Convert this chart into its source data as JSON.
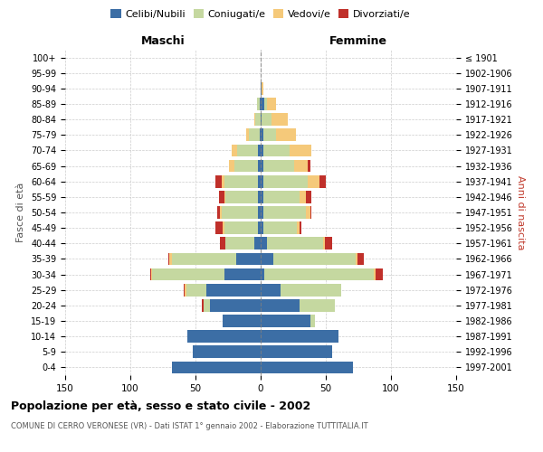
{
  "age_groups": [
    "0-4",
    "5-9",
    "10-14",
    "15-19",
    "20-24",
    "25-29",
    "30-34",
    "35-39",
    "40-44",
    "45-49",
    "50-54",
    "55-59",
    "60-64",
    "65-69",
    "70-74",
    "75-79",
    "80-84",
    "85-89",
    "90-94",
    "95-99",
    "100+"
  ],
  "birth_years": [
    "1997-2001",
    "1992-1996",
    "1987-1991",
    "1982-1986",
    "1977-1981",
    "1972-1976",
    "1967-1971",
    "1962-1966",
    "1957-1961",
    "1952-1956",
    "1947-1951",
    "1942-1946",
    "1937-1941",
    "1932-1936",
    "1927-1931",
    "1922-1926",
    "1917-1921",
    "1912-1916",
    "1907-1911",
    "1902-1906",
    "≤ 1901"
  ],
  "male": {
    "celibe": [
      68,
      52,
      56,
      29,
      39,
      42,
      28,
      19,
      5,
      2,
      2,
      2,
      2,
      2,
      2,
      1,
      0,
      1,
      0,
      0,
      0
    ],
    "coniugato": [
      0,
      0,
      0,
      0,
      5,
      15,
      55,
      49,
      22,
      26,
      28,
      25,
      26,
      18,
      16,
      8,
      4,
      2,
      0,
      0,
      0
    ],
    "vedovo": [
      0,
      0,
      0,
      0,
      0,
      1,
      1,
      2,
      0,
      1,
      1,
      1,
      2,
      4,
      4,
      2,
      1,
      0,
      0,
      0,
      0
    ],
    "divorziato": [
      0,
      0,
      0,
      0,
      1,
      1,
      1,
      1,
      4,
      6,
      2,
      4,
      5,
      0,
      0,
      0,
      0,
      0,
      0,
      0,
      0
    ]
  },
  "female": {
    "nubile": [
      71,
      55,
      60,
      38,
      30,
      15,
      3,
      10,
      5,
      2,
      2,
      2,
      2,
      2,
      2,
      2,
      1,
      3,
      1,
      0,
      0
    ],
    "coniugata": [
      0,
      0,
      0,
      4,
      27,
      47,
      84,
      63,
      43,
      26,
      33,
      28,
      34,
      24,
      20,
      10,
      7,
      2,
      0,
      0,
      0
    ],
    "vedova": [
      0,
      0,
      0,
      0,
      0,
      0,
      1,
      1,
      1,
      2,
      3,
      5,
      9,
      10,
      17,
      15,
      13,
      7,
      1,
      0,
      0
    ],
    "divorziata": [
      0,
      0,
      0,
      0,
      0,
      0,
      6,
      5,
      6,
      1,
      1,
      4,
      5,
      2,
      0,
      0,
      0,
      0,
      0,
      0,
      0
    ]
  },
  "color_celibe": "#3c6ea5",
  "color_coniugato": "#c5d8a0",
  "color_vedovo": "#f5c97a",
  "color_divorziato": "#c0302a",
  "title": "Popolazione per età, sesso e stato civile - 2002",
  "subtitle": "COMUNE DI CERRO VERONESE (VR) - Dati ISTAT 1° gennaio 2002 - Elaborazione TUTTITALIA.IT",
  "xlabel_left": "Maschi",
  "xlabel_right": "Femmine",
  "ylabel_left": "Fasce di età",
  "ylabel_right": "Anni di nascita",
  "xlim": 150,
  "bg_color": "#ffffff",
  "grid_color": "#cccccc"
}
